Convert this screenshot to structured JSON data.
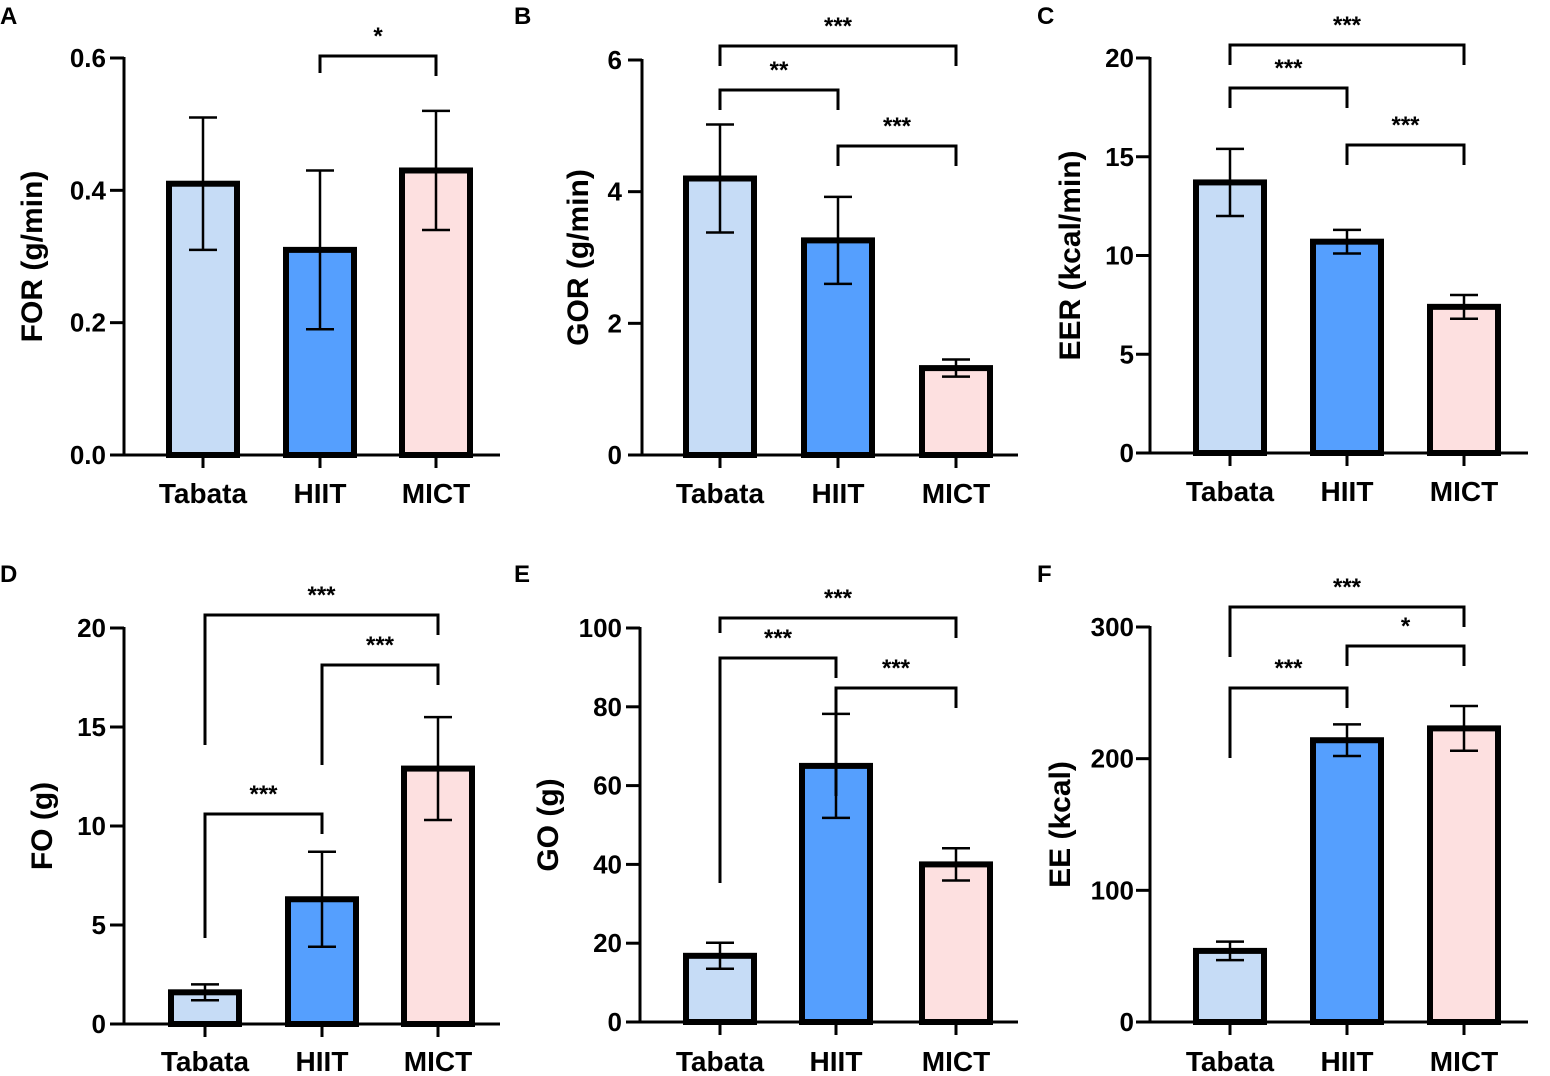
{
  "colors": {
    "Tabata": "#c6dcf6",
    "HIIT": "#559ffe",
    "MICT": "#fde0e0",
    "ink": "#000000"
  },
  "chart_data": [
    {
      "panel": "A",
      "type": "bar",
      "title": "",
      "categories": [
        "Tabata",
        "HIIT",
        "MICT"
      ],
      "values": [
        0.41,
        0.31,
        0.43
      ],
      "errors": [
        0.1,
        0.12,
        0.09
      ],
      "ylabel": "FOR  (g/min)",
      "xlabel": "",
      "ylim": [
        0,
        0.6
      ],
      "yticks": [
        0.0,
        0.2,
        0.4,
        0.6
      ],
      "ytick_labels": [
        "0.0",
        "0.2",
        "0.4",
        "0.6"
      ],
      "significance": [
        {
          "from": 1,
          "to": 2,
          "label": "*"
        }
      ]
    },
    {
      "panel": "B",
      "type": "bar",
      "title": "",
      "categories": [
        "Tabata",
        "HIIT",
        "MICT"
      ],
      "values": [
        4.2,
        3.26,
        1.32
      ],
      "errors": [
        0.82,
        0.66,
        0.13
      ],
      "ylabel": "GOR  (g/min)",
      "xlabel": "",
      "ylim": [
        0,
        6
      ],
      "yticks": [
        0,
        2,
        4,
        6
      ],
      "ytick_labels": [
        "0",
        "2",
        "4",
        "6"
      ],
      "significance": [
        {
          "from": 0,
          "to": 1,
          "label": "**"
        },
        {
          "from": 1,
          "to": 2,
          "label": "***"
        },
        {
          "from": 0,
          "to": 2,
          "label": "***"
        }
      ]
    },
    {
      "panel": "C",
      "type": "bar",
      "title": "",
      "categories": [
        "Tabata",
        "HIIT",
        "MICT"
      ],
      "values": [
        13.7,
        10.7,
        7.4
      ],
      "errors": [
        1.7,
        0.6,
        0.6
      ],
      "ylabel": "EER  (kcal/min)",
      "xlabel": "",
      "ylim": [
        0,
        20
      ],
      "yticks": [
        0,
        5,
        10,
        15,
        20
      ],
      "ytick_labels": [
        "0",
        "5",
        "10",
        "15",
        "20"
      ],
      "significance": [
        {
          "from": 0,
          "to": 1,
          "label": "***"
        },
        {
          "from": 1,
          "to": 2,
          "label": "***"
        },
        {
          "from": 0,
          "to": 2,
          "label": "***"
        }
      ]
    },
    {
      "panel": "D",
      "type": "bar",
      "title": "",
      "categories": [
        "Tabata",
        "HIIT",
        "MICT"
      ],
      "values": [
        1.6,
        6.3,
        12.9
      ],
      "errors": [
        0.4,
        2.4,
        2.6
      ],
      "ylabel": "FO  (g)",
      "xlabel": "",
      "ylim": [
        0,
        20
      ],
      "yticks": [
        0,
        5,
        10,
        15,
        20
      ],
      "ytick_labels": [
        "0",
        "5",
        "10",
        "15",
        "20"
      ],
      "significance": [
        {
          "from": 0,
          "to": 1,
          "label": "***"
        },
        {
          "from": 1,
          "to": 2,
          "label": "***"
        },
        {
          "from": 0,
          "to": 2,
          "label": "***"
        }
      ]
    },
    {
      "panel": "E",
      "type": "bar",
      "title": "",
      "categories": [
        "Tabata",
        "HIIT",
        "MICT"
      ],
      "values": [
        16.8,
        65,
        40
      ],
      "errors": [
        3.3,
        13.2,
        4.1
      ],
      "ylabel": "GO  (g)",
      "xlabel": "",
      "ylim": [
        0,
        100
      ],
      "yticks": [
        0,
        20,
        40,
        60,
        80,
        100
      ],
      "ytick_labels": [
        "0",
        "20",
        "40",
        "60",
        "80",
        "100"
      ],
      "significance": [
        {
          "from": 0,
          "to": 1,
          "label": "***"
        },
        {
          "from": 1,
          "to": 2,
          "label": "***"
        },
        {
          "from": 0,
          "to": 2,
          "label": "***"
        }
      ]
    },
    {
      "panel": "F",
      "type": "bar",
      "title": "",
      "categories": [
        "Tabata",
        "HIIT",
        "MICT"
      ],
      "values": [
        54,
        214,
        223
      ],
      "errors": [
        7,
        12,
        17
      ],
      "ylabel": "EE  (kcal)",
      "xlabel": "",
      "ylim": [
        0,
        300
      ],
      "yticks": [
        0,
        100,
        200,
        300
      ],
      "ytick_labels": [
        "0",
        "100",
        "200",
        "300"
      ],
      "significance": [
        {
          "from": 0,
          "to": 1,
          "label": "***"
        },
        {
          "from": 1,
          "to": 2,
          "label": "*"
        },
        {
          "from": 0,
          "to": 2,
          "label": "***"
        }
      ]
    }
  ]
}
